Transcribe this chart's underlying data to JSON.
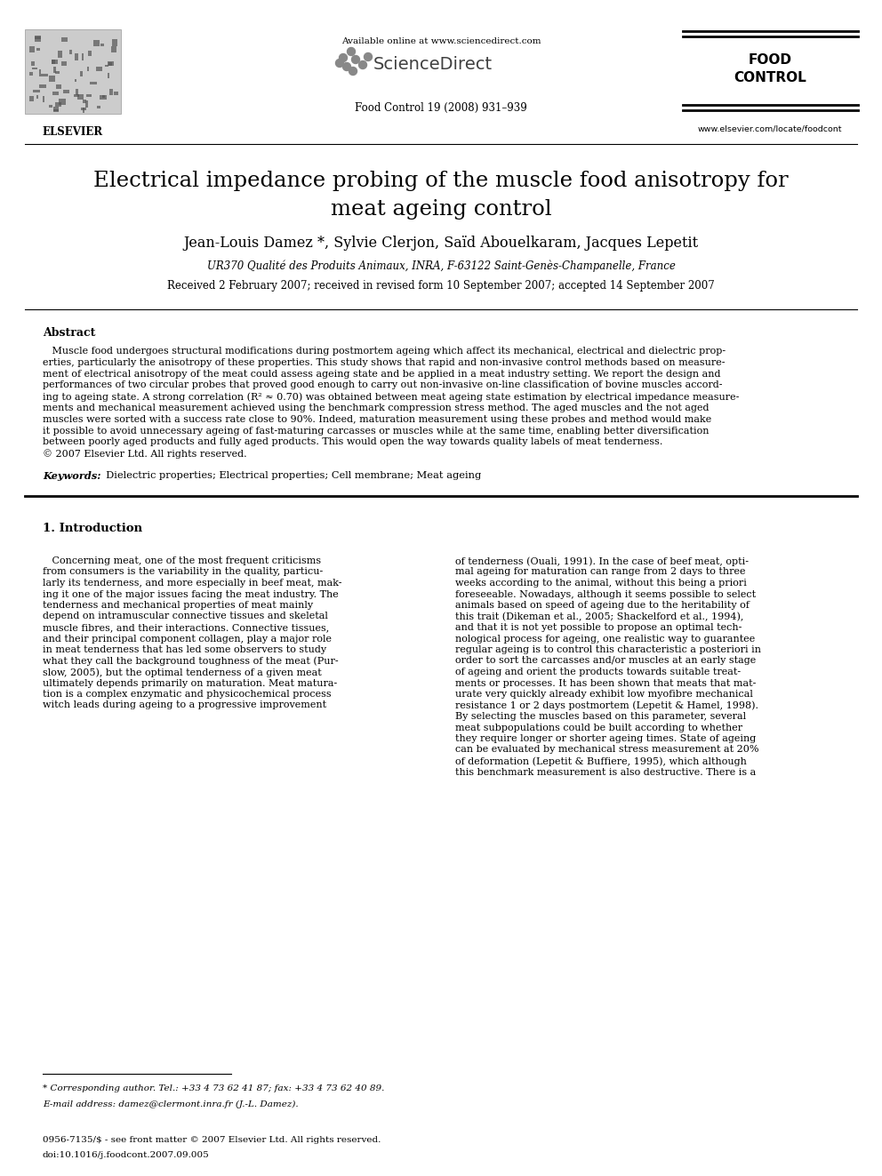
{
  "bg_color": "#ffffff",
  "text_color": "#000000",
  "title_paper": "Electrical impedance probing of the muscle food anisotropy for\nmeat ageing control",
  "authors": "Jean-Louis Damez *, Sylvie Clerjon, Saïd Abouelkaram, Jacques Lepetit",
  "affiliation": "UR370 Qualité des Produits Animaux, INRA, F-63122 Saint-Genès-Champanelle, France",
  "received": "Received 2 February 2007; received in revised form 10 September 2007; accepted 14 September 2007",
  "journal_top": "Available online at www.sciencedirect.com",
  "journal_ref": "Food Control 19 (2008) 931–939",
  "journal_url": "www.elsevier.com/locate/foodcont",
  "elsevier_text": "ELSEVIER",
  "abstract_title": "Abstract",
  "abstract_text": "   Muscle food undergoes structural modifications during postmortem ageing which affect its mechanical, electrical and dielectric properties, particularly the anisotropy of these properties. This study shows that rapid and non-invasive control methods based on measurement of electrical anisotropy of the meat could assess ageing state and be applied in a meat industry setting. We report the design and performances of two circular probes that proved good enough to carry out non-invasive on-line classification of bovine muscles according to ageing state. A strong correlation (R² ≈ 0.70) was obtained between meat ageing state estimation by electrical impedance measurements and mechanical measurement achieved using the benchmark compression stress method. The aged muscles and the not aged muscles were sorted with a success rate close to 90%. Indeed, maturation measurement using these probes and method would make it possible to avoid unnecessary ageing of fast-maturing carcasses or muscles while at the same time, enabling better diversification between poorly aged products and fully aged products. This would open the way towards quality labels of meat tenderness.\n© 2007 Elsevier Ltd. All rights reserved.",
  "keywords_label": "Keywords:",
  "keywords_text": "  Dielectric properties; Electrical properties; Cell membrane; Meat ageing",
  "section1_title": "1. Introduction",
  "intro_col1_lines": [
    "   Concerning meat, one of the most frequent criticisms",
    "from consumers is the variability in the quality, particu-",
    "larly its tenderness, and more especially in beef meat, mak-",
    "ing it one of the major issues facing the meat industry. The",
    "tenderness and mechanical properties of meat mainly",
    "depend on intramuscular connective tissues and skeletal",
    "muscle fibres, and their interactions. Connective tissues,",
    "and their principal component collagen, play a major role",
    "in meat tenderness that has led some observers to study",
    "what they call the background toughness of the meat (Pur-",
    "slow, 2005), but the optimal tenderness of a given meat",
    "ultimately depends primarily on maturation. Meat matura-",
    "tion is a complex enzymatic and physicochemical process",
    "witch leads during ageing to a progressive improvement"
  ],
  "intro_col2_lines": [
    "of tenderness (Ouali, 1991). In the case of beef meat, opti-",
    "mal ageing for maturation can range from 2 days to three",
    "weeks according to the animal, without this being a priori",
    "foreseeable. Nowadays, although it seems possible to select",
    "animals based on speed of ageing due to the heritability of",
    "this trait (Dikeman et al., 2005; Shackelford et al., 1994),",
    "and that it is not yet possible to propose an optimal tech-",
    "nological process for ageing, one realistic way to guarantee",
    "regular ageing is to control this characteristic a posteriori in",
    "order to sort the carcasses and/or muscles at an early stage",
    "of ageing and orient the products towards suitable treat-",
    "ments or processes. It has been shown that meats that mat-",
    "urate very quickly already exhibit low myofibre mechanical",
    "resistance 1 or 2 days postmortem (Lepetit & Hamel, 1998).",
    "By selecting the muscles based on this parameter, several",
    "meat subpopulations could be built according to whether",
    "they require longer or shorter ageing times. State of ageing",
    "can be evaluated by mechanical stress measurement at 20%",
    "of deformation (Lepetit & Buffiere, 1995), which although",
    "this benchmark measurement is also destructive. There is a"
  ],
  "footnote_star": "* Corresponding author. Tel.: +33 4 73 62 41 87; fax: +33 4 73 62 40 89.",
  "footnote_email": "E-mail address: damez@clermont.inra.fr (J.-L. Damez).",
  "issn": "0956-7135/$ - see front matter © 2007 Elsevier Ltd. All rights reserved.",
  "doi": "doi:10.1016/j.foodcont.2007.09.005",
  "abstract_lines": [
    "   Muscle food undergoes structural modifications during postmortem ageing which affect its mechanical, electrical and dielectric prop-",
    "erties, particularly the anisotropy of these properties. This study shows that rapid and non-invasive control methods based on measure-",
    "ment of electrical anisotropy of the meat could assess ageing state and be applied in a meat industry setting. We report the design and",
    "performances of two circular probes that proved good enough to carry out non-invasive on-line classification of bovine muscles accord-",
    "ing to ageing state. A strong correlation (R² ≈ 0.70) was obtained between meat ageing state estimation by electrical impedance measure-",
    "ments and mechanical measurement achieved using the benchmark compression stress method. The aged muscles and the not aged",
    "muscles were sorted with a success rate close to 90%. Indeed, maturation measurement using these probes and method would make",
    "it possible to avoid unnecessary ageing of fast-maturing carcasses or muscles while at the same time, enabling better diversification",
    "between poorly aged products and fully aged products. This would open the way towards quality labels of meat tenderness.",
    "© 2007 Elsevier Ltd. All rights reserved."
  ]
}
